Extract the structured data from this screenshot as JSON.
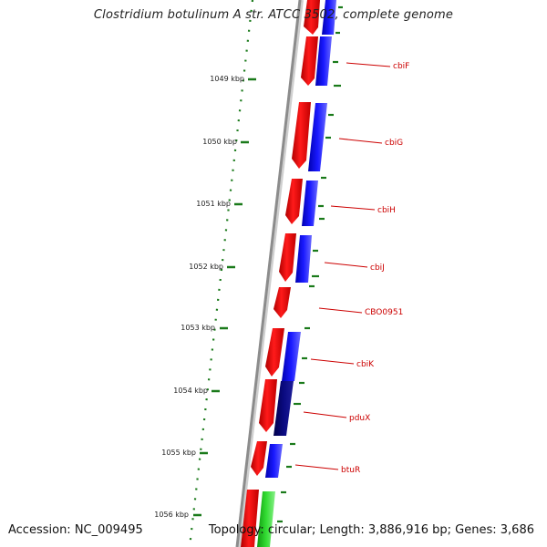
{
  "title": "Clostridium botulinum A str. ATCC 3502, complete genome",
  "accession": "Accession: NC_009495",
  "summary": "Topology: circular; Length: 3,886,916 bp; Genes: 3,686",
  "ruler_labels": [
    "1049 kbp",
    "1050 kbp",
    "1051 kbp",
    "1052 kbp",
    "1053 kbp",
    "1054 kbp",
    "1055 kbp",
    "1056 kbp"
  ],
  "genes": [
    {
      "name": "cbiF"
    },
    {
      "name": "cbiG"
    },
    {
      "name": "cbiH"
    },
    {
      "name": "cbiJ"
    },
    {
      "name": "CBO0951"
    },
    {
      "name": "cbiK"
    },
    {
      "name": "pduX"
    },
    {
      "name": "btuR"
    }
  ],
  "colors": {
    "forward_gene": "#ff0000",
    "cog_blue": "#0000ff",
    "cog_navy": "#0a0a80",
    "cog_green": "#22cc22",
    "label_red": "#cc0000",
    "tick_green": "#1a7a1a",
    "backbone": "#8c8c8c"
  }
}
